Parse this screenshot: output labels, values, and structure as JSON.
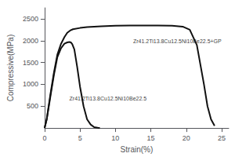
{
  "chart_data": {
    "type": "line",
    "xlabel": "Strain(%)",
    "ylabel": "Compressive(MPa)",
    "series": [
      {
        "color": "#111111",
        "x": [
          0,
          0.3,
          0.8,
          1.3,
          1.8,
          2.3,
          2.8,
          3.2,
          3.5,
          3.7,
          3.9,
          4.2,
          4.6,
          5.0,
          5.5,
          6.0,
          6.5,
          7.0,
          7.5,
          7.8
        ],
        "values": [
          0,
          200,
          700,
          1200,
          1620,
          1820,
          1930,
          1960,
          1970,
          1960,
          1920,
          1800,
          1400,
          950,
          500,
          200,
          80,
          20,
          5,
          0
        ]
      },
      {
        "color": "#111111",
        "x": [
          0,
          0.3,
          0.8,
          1.3,
          1.8,
          2.3,
          2.8,
          3.2,
          3.6,
          4.0,
          5.0,
          6.0,
          8.0,
          10.0,
          12.0,
          14.0,
          16.0,
          18.0,
          19.5,
          20.5,
          21.5,
          22.5,
          23.0,
          23.5,
          24.0
        ],
        "values": [
          0,
          200,
          750,
          1250,
          1680,
          1920,
          2080,
          2180,
          2230,
          2260,
          2290,
          2310,
          2330,
          2340,
          2345,
          2345,
          2345,
          2340,
          2320,
          2250,
          1900,
          1000,
          500,
          200,
          50
        ]
      }
    ],
    "annotations": [
      {
        "text": "Zr41.2Ti13.8Cu12.5Ni10Be22.5",
        "x": 3.5,
        "y": 680
      },
      {
        "text": "Zr41.2Ti13.8Cu12.5Ni10Be22.5+GP",
        "x": 12.5,
        "y": 1980
      }
    ],
    "xlim": [
      0,
      26
    ],
    "ylim": [
      0,
      2750
    ],
    "xticks": [
      0,
      5,
      10,
      15,
      20,
      25
    ],
    "yticks": [
      500,
      1000,
      1500,
      2000,
      2500
    ],
    "grid": false
  }
}
